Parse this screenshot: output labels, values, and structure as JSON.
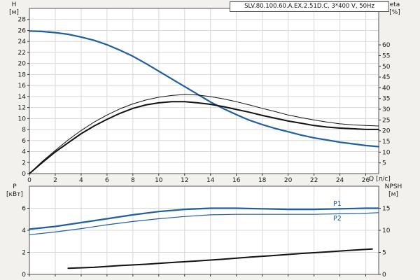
{
  "title_box": {
    "text": "SLV.80.100.60.A.EX.2.51D.C, 3*400 V, 50Hz"
  },
  "labels": {
    "h_axis": "H",
    "h_unit": "[м]",
    "eta_axis": "eta",
    "eta_unit": "[%]",
    "p_axis": "P",
    "p_unit": "[кВт]",
    "npsh_axis": "NPSH",
    "npsh_unit": "[м]",
    "q_axis": "Q [л/с]",
    "p1": "P1",
    "p2": "P2"
  },
  "colors": {
    "background": "#f2f1ee",
    "plot_bg": "#ffffff",
    "grid": "#d8d8d8",
    "plot_border": "#555555",
    "tick": "#333333",
    "curve_blue": "#1f5fa0",
    "curve_black": "#111111",
    "text": "#1a1a1a"
  },
  "chart_data": [
    {
      "type": "line",
      "title": "SLV.80.100.60.A.EX.2.51D.C, 3*400 V, 50Hz",
      "x_label": "Q [л/с]",
      "x_range": [
        0,
        27
      ],
      "x_ticks": [
        0,
        2,
        4,
        6,
        8,
        10,
        12,
        14,
        16,
        18,
        20,
        22,
        24,
        26
      ],
      "y_left_label": "H [м]",
      "y_left_range": [
        0,
        30
      ],
      "y_left_ticks": [
        0,
        2,
        4,
        6,
        8,
        10,
        12,
        14,
        16,
        18,
        20,
        22,
        24,
        26,
        28
      ],
      "y_right_label": "eta [%]",
      "y_right_range": [
        0,
        77
      ],
      "y_right_ticks": [
        5,
        10,
        15,
        20,
        25,
        30,
        35,
        40,
        45,
        50,
        55,
        60
      ],
      "grid": true,
      "legend_position": "none",
      "series": [
        {
          "name": "head",
          "label": "H",
          "axis": "left",
          "color": "#1f5fa0",
          "width": 2.2,
          "points": [
            [
              0,
              25.9
            ],
            [
              1,
              25.8
            ],
            [
              2,
              25.6
            ],
            [
              3,
              25.3
            ],
            [
              4,
              24.8
            ],
            [
              5,
              24.2
            ],
            [
              6,
              23.4
            ],
            [
              7,
              22.4
            ],
            [
              8,
              21.3
            ],
            [
              9,
              20.0
            ],
            [
              10,
              18.6
            ],
            [
              11,
              17.2
            ],
            [
              12,
              15.8
            ],
            [
              13,
              14.4
            ],
            [
              14,
              13.0
            ],
            [
              15,
              11.8
            ],
            [
              16,
              10.7
            ],
            [
              17,
              9.7
            ],
            [
              18,
              8.9
            ],
            [
              19,
              8.2
            ],
            [
              20,
              7.6
            ],
            [
              21,
              7.0
            ],
            [
              22,
              6.5
            ],
            [
              23,
              6.1
            ],
            [
              24,
              5.7
            ],
            [
              25,
              5.4
            ],
            [
              26,
              5.1
            ],
            [
              27,
              4.9
            ]
          ]
        },
        {
          "name": "eta-pump",
          "label": "eta",
          "axis": "right",
          "color": "#111111",
          "width": 1,
          "points": [
            [
              0,
              0
            ],
            [
              1,
              5.7
            ],
            [
              2,
              10.8
            ],
            [
              3,
              15.7
            ],
            [
              4,
              20.1
            ],
            [
              5,
              24.0
            ],
            [
              6,
              27.3
            ],
            [
              7,
              30.2
            ],
            [
              8,
              32.5
            ],
            [
              9,
              34.3
            ],
            [
              10,
              35.6
            ],
            [
              11,
              36.4
            ],
            [
              12,
              36.9
            ],
            [
              13,
              36.6
            ],
            [
              14,
              35.9
            ],
            [
              15,
              34.8
            ],
            [
              16,
              33.5
            ],
            [
              17,
              32.0
            ],
            [
              18,
              30.4
            ],
            [
              19,
              28.9
            ],
            [
              20,
              27.3
            ],
            [
              21,
              26.1
            ],
            [
              22,
              25.0
            ],
            [
              23,
              24.0
            ],
            [
              24,
              23.2
            ],
            [
              25,
              22.7
            ],
            [
              26,
              22.4
            ],
            [
              27,
              22.2
            ]
          ]
        },
        {
          "name": "eta-total",
          "label": "eta",
          "axis": "right",
          "color": "#111111",
          "width": 2,
          "points": [
            [
              0,
              0
            ],
            [
              1,
              5.2
            ],
            [
              2,
              10.1
            ],
            [
              3,
              14.4
            ],
            [
              4,
              18.6
            ],
            [
              5,
              22.2
            ],
            [
              6,
              25.3
            ],
            [
              7,
              28.1
            ],
            [
              8,
              30.4
            ],
            [
              9,
              32.0
            ],
            [
              10,
              33.0
            ],
            [
              11,
              33.5
            ],
            [
              12,
              33.5
            ],
            [
              13,
              33.0
            ],
            [
              14,
              32.3
            ],
            [
              15,
              31.2
            ],
            [
              16,
              29.9
            ],
            [
              17,
              28.6
            ],
            [
              18,
              27.1
            ],
            [
              19,
              25.8
            ],
            [
              20,
              24.5
            ],
            [
              21,
              23.5
            ],
            [
              22,
              22.4
            ],
            [
              23,
              21.7
            ],
            [
              24,
              21.2
            ],
            [
              25,
              20.9
            ],
            [
              26,
              20.6
            ],
            [
              27,
              20.6
            ]
          ]
        }
      ]
    },
    {
      "type": "line",
      "title": "",
      "x_label": "",
      "x_range": [
        0,
        27
      ],
      "x_ticks": [
        0,
        2,
        4,
        6,
        8,
        10,
        12,
        14,
        16,
        18,
        20,
        22,
        24,
        26
      ],
      "y_left_label": "P [кВт]",
      "y_left_range": [
        0,
        8
      ],
      "y_left_ticks": [
        0,
        2,
        4,
        6
      ],
      "y_right_label": "NPSH [м]",
      "y_right_range": [
        0,
        20
      ],
      "y_right_ticks": [
        0,
        5,
        10,
        15
      ],
      "grid": true,
      "legend_position": "inline-right",
      "series": [
        {
          "name": "P1",
          "label": "P1",
          "axis": "left",
          "color": "#1f5fa0",
          "width": 2.2,
          "points": [
            [
              0,
              4.1
            ],
            [
              2,
              4.35
            ],
            [
              4,
              4.7
            ],
            [
              6,
              5.05
            ],
            [
              8,
              5.4
            ],
            [
              10,
              5.7
            ],
            [
              12,
              5.9
            ],
            [
              14,
              6.0
            ],
            [
              16,
              6.0
            ],
            [
              18,
              5.95
            ],
            [
              20,
              5.9
            ],
            [
              22,
              5.9
            ],
            [
              24,
              5.95
            ],
            [
              26,
              6.0
            ],
            [
              27,
              6.0
            ]
          ]
        },
        {
          "name": "P2",
          "label": "P2",
          "axis": "left",
          "color": "#1f5fa0",
          "width": 1.2,
          "points": [
            [
              0,
              3.6
            ],
            [
              2,
              3.85
            ],
            [
              4,
              4.15
            ],
            [
              6,
              4.5
            ],
            [
              8,
              4.8
            ],
            [
              10,
              5.05
            ],
            [
              12,
              5.25
            ],
            [
              14,
              5.4
            ],
            [
              16,
              5.45
            ],
            [
              18,
              5.45
            ],
            [
              20,
              5.45
            ],
            [
              22,
              5.45
            ],
            [
              24,
              5.5
            ],
            [
              26,
              5.55
            ],
            [
              27,
              5.6
            ]
          ]
        },
        {
          "name": "NPSH",
          "label": "NPSH",
          "axis": "right",
          "color": "#111111",
          "width": 2,
          "points": [
            [
              3,
              1.4
            ],
            [
              5,
              1.6
            ],
            [
              7,
              2.0
            ],
            [
              9,
              2.3
            ],
            [
              11,
              2.7
            ],
            [
              13,
              3.05
            ],
            [
              15,
              3.45
            ],
            [
              17,
              3.9
            ],
            [
              19,
              4.3
            ],
            [
              21,
              4.75
            ],
            [
              23,
              5.1
            ],
            [
              25,
              5.5
            ],
            [
              26.5,
              5.75
            ]
          ]
        }
      ]
    }
  ]
}
